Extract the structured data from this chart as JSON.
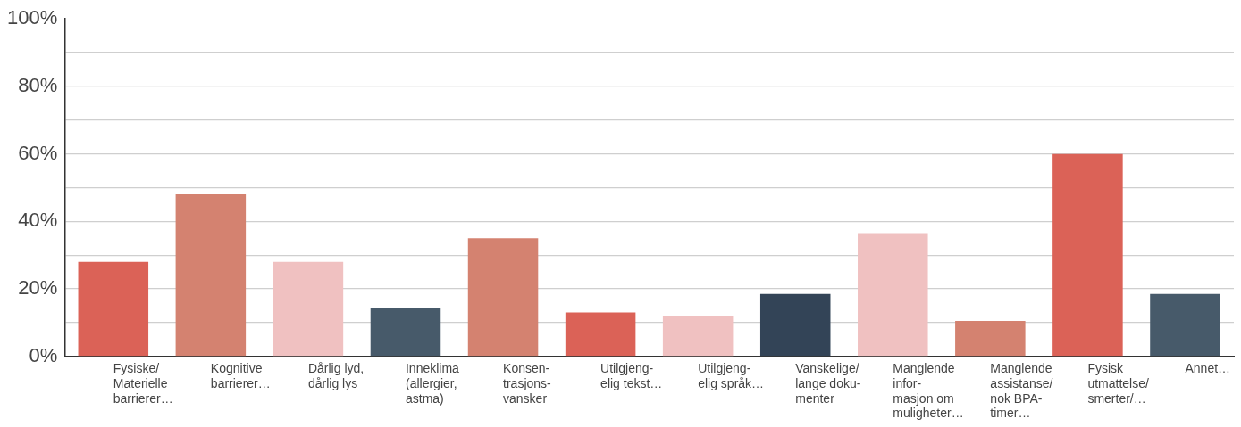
{
  "chart_data": {
    "type": "bar",
    "categories": [
      "Fysiske/ Materielle barrierer…",
      "Kognitive barrierer…",
      "Dårlig lyd, dårlig lys",
      "Inneklima (allergier, astma)",
      "Konsen- trasjons- vansker",
      "Utilgjeng- elig tekst…",
      "Utilgjeng- elig språk…",
      "Vanskelige/ lange doku- menter",
      "Manglende infor- masjon om muligheter…",
      "Manglende assistanse/ nok BPA- timer…",
      "Fysisk utmattelse/ smerter/…",
      "Annet…"
    ],
    "values": [
      28,
      48,
      28,
      14.5,
      35,
      13,
      12,
      18.5,
      36.5,
      10.5,
      60,
      18.5
    ],
    "colors": [
      "#db6257",
      "#d48270",
      "#f0c1c1",
      "#475a6a",
      "#d48270",
      "#db6257",
      "#f0c1c1",
      "#334457",
      "#f0c1c1",
      "#d48270",
      "#db6257",
      "#475a6a"
    ],
    "ylim": [
      0,
      100
    ],
    "yticks": [
      {
        "value": 0,
        "label": "0%"
      },
      {
        "value": 10,
        "label": null
      },
      {
        "value": 20,
        "label": "20%"
      },
      {
        "value": 30,
        "label": null
      },
      {
        "value": 40,
        "label": "40%"
      },
      {
        "value": 50,
        "label": null
      },
      {
        "value": 60,
        "label": "60%"
      },
      {
        "value": 70,
        "label": null
      },
      {
        "value": 80,
        "label": "80%"
      },
      {
        "value": 90,
        "label": null
      },
      {
        "value": 100,
        "label": "100%"
      }
    ],
    "grid": "y"
  }
}
